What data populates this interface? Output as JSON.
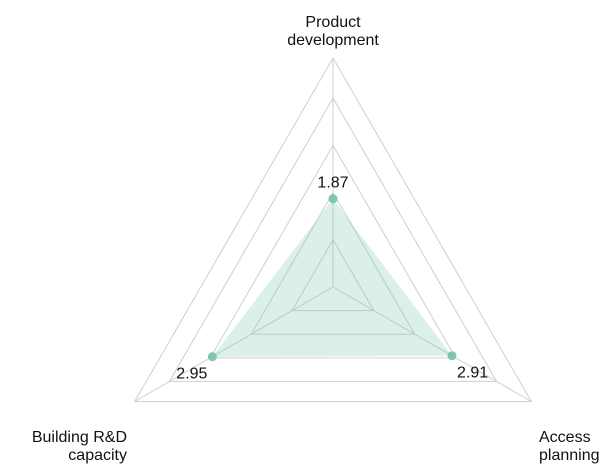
{
  "chart_data": {
    "type": "radar",
    "axes": [
      {
        "label": [
          "Product",
          "development"
        ],
        "value": 1.87
      },
      {
        "label": [
          "Access",
          "planning"
        ],
        "value": 2.91
      },
      {
        "label": [
          "Building R&D",
          "capacity"
        ],
        "value": 2.95
      }
    ],
    "scale_max": 4.85,
    "grid_levels": [
      1,
      2,
      3,
      4,
      4.85
    ],
    "grid": true,
    "colors": {
      "area": "#7cc8a8",
      "point": "#7cc8a8",
      "grid": "#cfcfcf",
      "text": "#111111"
    }
  }
}
